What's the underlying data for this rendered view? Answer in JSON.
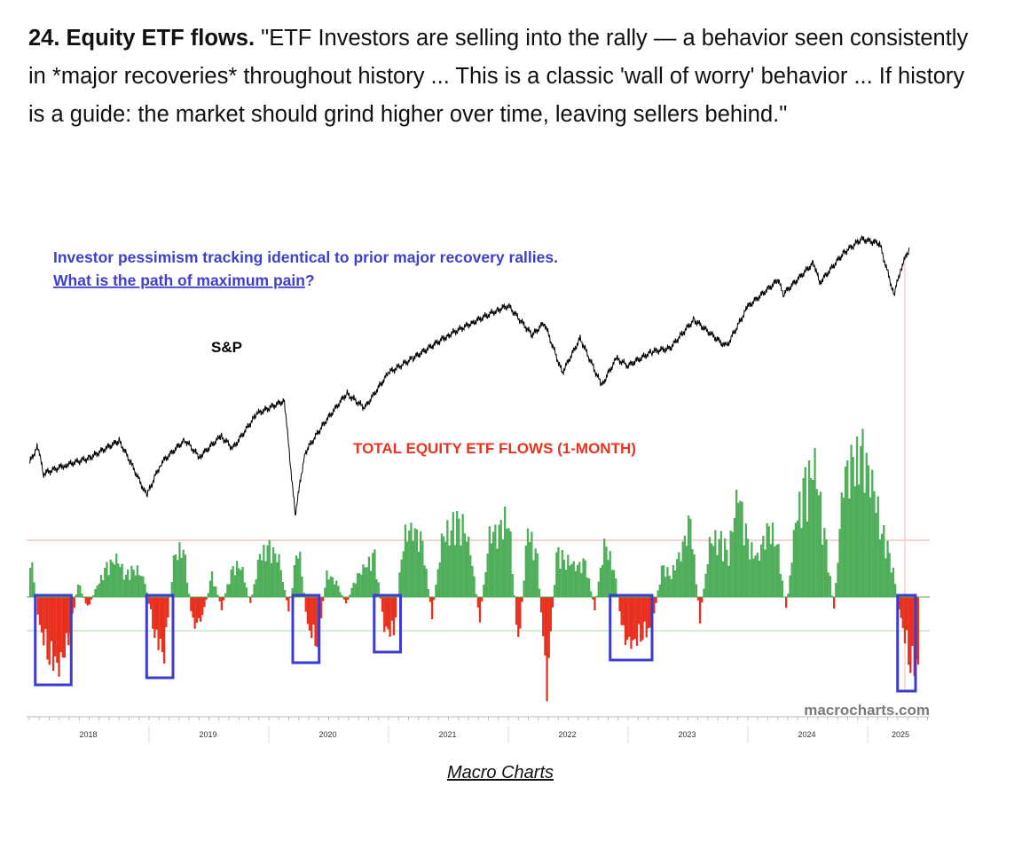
{
  "article": {
    "heading": "24. Equity ETF flows.",
    "quote": "\"ETF Investors are selling into the rally — a behavior seen consistently in *major recoveries* throughout history ... This is a classic 'wall of worry' behavior ... If history is a guide: the market should grind higher over time, leaving sellers behind.\"",
    "caption_link": "Macro Charts"
  },
  "colors": {
    "blue_text": "#3f3fcc",
    "red_text": "#e8341f",
    "positive": "#4fae5a",
    "negative": "#e8301e",
    "box": "#3b3bd0",
    "sp_line": "#000000"
  },
  "chart_data": {
    "type": "line",
    "annotation_line1": "Investor pessimism tracking identical to prior major recovery rallies.",
    "annotation_line2": "What is the path of maximum pain",
    "annotation_line2_end": "?",
    "sp_label": "S&P",
    "flows_title": "TOTAL EQUITY ETF FLOWS (1-MONTH)",
    "watermark": "macrocharts.com",
    "x_ticks": [
      "2018",
      "2019",
      "2020",
      "2021",
      "2022",
      "2023",
      "2024",
      "2025"
    ],
    "xlim": [
      2018.0,
      2025.4
    ],
    "sp500": {
      "scale": "log",
      "points": [
        [
          2018.0,
          2700
        ],
        [
          2018.07,
          2870
        ],
        [
          2018.12,
          2600
        ],
        [
          2018.3,
          2680
        ],
        [
          2018.5,
          2750
        ],
        [
          2018.75,
          2930
        ],
        [
          2018.85,
          2700
        ],
        [
          2018.98,
          2400
        ],
        [
          2019.1,
          2700
        ],
        [
          2019.3,
          2940
        ],
        [
          2019.42,
          2760
        ],
        [
          2019.6,
          2980
        ],
        [
          2019.7,
          2850
        ],
        [
          2019.9,
          3230
        ],
        [
          2020.13,
          3390
        ],
        [
          2020.22,
          2240
        ],
        [
          2020.3,
          2800
        ],
        [
          2020.45,
          3100
        ],
        [
          2020.65,
          3480
        ],
        [
          2020.8,
          3300
        ],
        [
          2021.0,
          3750
        ],
        [
          2021.2,
          3950
        ],
        [
          2021.5,
          4300
        ],
        [
          2021.7,
          4500
        ],
        [
          2021.9,
          4700
        ],
        [
          2022.0,
          4790
        ],
        [
          2022.2,
          4300
        ],
        [
          2022.3,
          4500
        ],
        [
          2022.45,
          3750
        ],
        [
          2022.6,
          4250
        ],
        [
          2022.78,
          3580
        ],
        [
          2022.9,
          3950
        ],
        [
          2023.0,
          3850
        ],
        [
          2023.2,
          4050
        ],
        [
          2023.35,
          4100
        ],
        [
          2023.55,
          4550
        ],
        [
          2023.82,
          4120
        ],
        [
          2024.0,
          4770
        ],
        [
          2024.25,
          5250
        ],
        [
          2024.3,
          5000
        ],
        [
          2024.55,
          5600
        ],
        [
          2024.6,
          5200
        ],
        [
          2024.8,
          5800
        ],
        [
          2024.95,
          6100
        ],
        [
          2025.1,
          6000
        ],
        [
          2025.22,
          4980
        ],
        [
          2025.28,
          5500
        ],
        [
          2025.35,
          5900
        ]
      ]
    },
    "flows": {
      "start": 2018.0,
      "end": 2025.35,
      "units": "relative",
      "upper_threshold": 65,
      "lower_threshold": -38,
      "monthly_values": [
        60,
        -40,
        -80,
        -90,
        -60,
        20,
        -15,
        15,
        40,
        50,
        30,
        40,
        20,
        -50,
        -75,
        50,
        70,
        -40,
        -25,
        30,
        -15,
        35,
        45,
        -10,
        55,
        65,
        50,
        -20,
        75,
        -40,
        -60,
        30,
        20,
        -10,
        25,
        40,
        55,
        -40,
        -50,
        80,
        90,
        70,
        -25,
        75,
        95,
        105,
        60,
        -30,
        80,
        90,
        110,
        -70,
        90,
        50,
        -120,
        60,
        50,
        40,
        45,
        -15,
        70,
        40,
        -55,
        -60,
        -50,
        -40,
        40,
        30,
        60,
        100,
        -30,
        70,
        80,
        60,
        140,
        70,
        50,
        90,
        80,
        -20,
        100,
        150,
        170,
        90,
        -20,
        160,
        175,
        190,
        150,
        90,
        50,
        -30,
        -90
      ]
    },
    "highlight_periods": [
      [
        2018.05,
        2018.35
      ],
      [
        2018.98,
        2019.2
      ],
      [
        2020.2,
        2020.42
      ],
      [
        2020.88,
        2021.1
      ],
      [
        2022.85,
        2023.2
      ],
      [
        2025.25,
        2025.4
      ]
    ]
  }
}
